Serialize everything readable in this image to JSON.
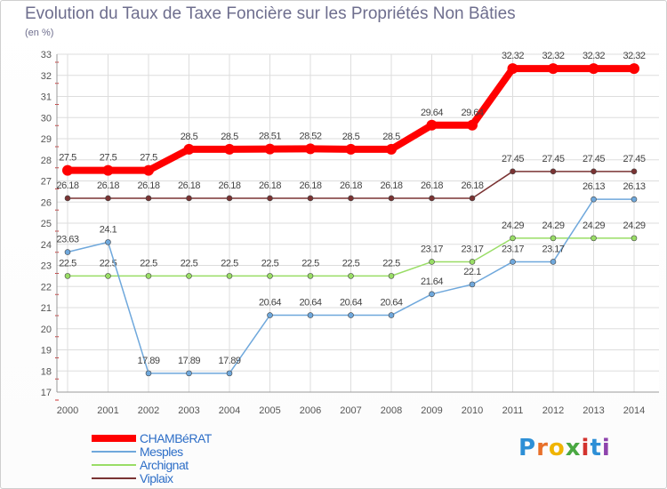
{
  "chart_data": {
    "type": "line",
    "title": "Evolution du Taux de Taxe Foncière sur les Propriétés Non Bâties",
    "ylabel": "(en %)",
    "xlabel": "",
    "ylim": [
      17,
      33
    ],
    "x": [
      "2000",
      "2001",
      "2002",
      "2003",
      "2004",
      "2005",
      "2006",
      "2007",
      "2008",
      "2009",
      "2010",
      "2011",
      "2012",
      "2013",
      "2014"
    ],
    "yticks": [
      "17",
      "18",
      "19",
      "20",
      "21",
      "22",
      "23",
      "24",
      "25",
      "26",
      "27",
      "28",
      "29",
      "30",
      "31",
      "32",
      "33"
    ],
    "series": [
      {
        "name": "CHAMBéRAT",
        "color": "#ff0000",
        "values": [
          27.5,
          27.5,
          27.5,
          28.5,
          28.5,
          28.51,
          28.52,
          28.5,
          28.5,
          29.64,
          29.64,
          32.32,
          32.32,
          32.32,
          32.32
        ],
        "labels": [
          "27.5",
          "27.5",
          "27.5",
          "28.5",
          "28.5",
          "28.51",
          "28.52",
          "28.5",
          "28.5",
          "29.64",
          "29.64",
          "32.32",
          "32.32",
          "32.32",
          "32.32"
        ]
      },
      {
        "name": "Mesples",
        "color": "#6fa8dc",
        "values": [
          23.63,
          24.1,
          17.89,
          17.89,
          17.89,
          20.64,
          20.64,
          20.64,
          20.64,
          21.64,
          22.1,
          23.17,
          23.17,
          26.13,
          26.13
        ],
        "labels": [
          "23.63",
          "24.1",
          "17.89",
          "17.89",
          "17.89",
          "20.64",
          "20.64",
          "20.64",
          "20.64",
          "21.64",
          "22.1",
          "23.17",
          "23.17",
          "26.13",
          "26.13"
        ]
      },
      {
        "name": "Archignat",
        "color": "#99dd66",
        "values": [
          22.5,
          22.5,
          22.5,
          22.5,
          22.5,
          22.5,
          22.5,
          22.5,
          22.5,
          23.17,
          23.17,
          24.29,
          24.29,
          24.29,
          24.29
        ],
        "labels": [
          "22.5",
          "22.5",
          "22.5",
          "22.5",
          "22.5",
          "22.5",
          "22.5",
          "22.5",
          "22.5",
          "23.17",
          "23.17",
          "24.29",
          "24.29",
          "24.29",
          "24.29"
        ]
      },
      {
        "name": "Viplaix",
        "color": "#7a3333",
        "values": [
          26.18,
          26.18,
          26.18,
          26.18,
          26.18,
          26.18,
          26.18,
          26.18,
          26.18,
          26.18,
          26.18,
          27.45,
          27.45,
          27.45,
          27.45
        ],
        "labels": [
          "26.18",
          "26.18",
          "26.18",
          "26.18",
          "26.18",
          "26.18",
          "26.18",
          "26.18",
          "26.18",
          "26.18",
          "26.18",
          "27.45",
          "27.45",
          "27.45",
          "27.45"
        ]
      }
    ]
  },
  "brand": {
    "p": "P",
    "r": "r",
    "o": "o",
    "x": "x",
    "i": "i",
    "t": "t",
    "i2": "i"
  }
}
